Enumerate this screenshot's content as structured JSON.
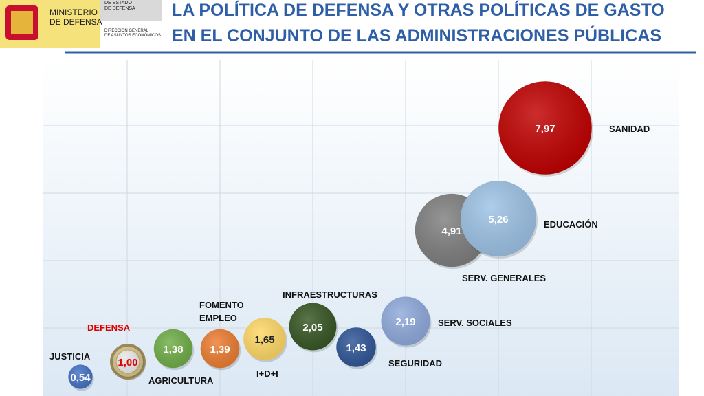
{
  "header": {
    "ministry": [
      "MINISTERIO",
      "DE DEFENSA"
    ],
    "secretariat": [
      "DE ESTADO",
      "DE DEFENSA"
    ],
    "directorate": [
      "DIRECCIÓN GENERAL",
      "DE ASUNTOS ECONÓMICOS"
    ]
  },
  "chart_data": {
    "type": "bubble",
    "title": [
      "LA POLÍTICA DE DEFENSA Y OTRAS POLÍTICAS DE GASTO",
      "EN EL CONJUNTO DE LAS ADMINISTRACIONES PÚBLICAS"
    ],
    "categories": [
      "JUSTICIA",
      "DEFENSA",
      "AGRICULTURA",
      "FOMENTO EMPLEO",
      "I+D+I",
      "INFRAESTRUCTURAS",
      "SEGURIDAD",
      "SERV. SOCIALES",
      "SERV. GENERALES",
      "EDUCACIÓN",
      "SANIDAD"
    ],
    "values": [
      0.54,
      1.0,
      1.38,
      1.39,
      1.65,
      2.05,
      1.43,
      2.19,
      4.91,
      5.26,
      7.97
    ],
    "value_labels": [
      "0,54",
      "1,00",
      "1,38",
      "1,39",
      "1,65",
      "2,05",
      "1,43",
      "2,19",
      "4,91",
      "5,26",
      "7,97"
    ],
    "colors": [
      "#4472c4",
      "#d9c58a",
      "#70ad47",
      "#ed7d31",
      "#ffd966",
      "#375623",
      "#2f5597",
      "#8faadc",
      "#7f7f7f",
      "#9dc3e6",
      "#c00000"
    ],
    "value_text_colors": [
      "#ffffff",
      "#e00000",
      "#ffffff",
      "#ffffff",
      "#222222",
      "#ffffff",
      "#ffffff",
      "#ffffff",
      "#ffffff",
      "#ffffff",
      "#ffffff"
    ],
    "name_colors": [
      "#111111",
      "#e00000",
      "#111111",
      "#111111",
      "#111111",
      "#111111",
      "#111111",
      "#111111",
      "#111111",
      "#111111",
      "#111111"
    ]
  }
}
